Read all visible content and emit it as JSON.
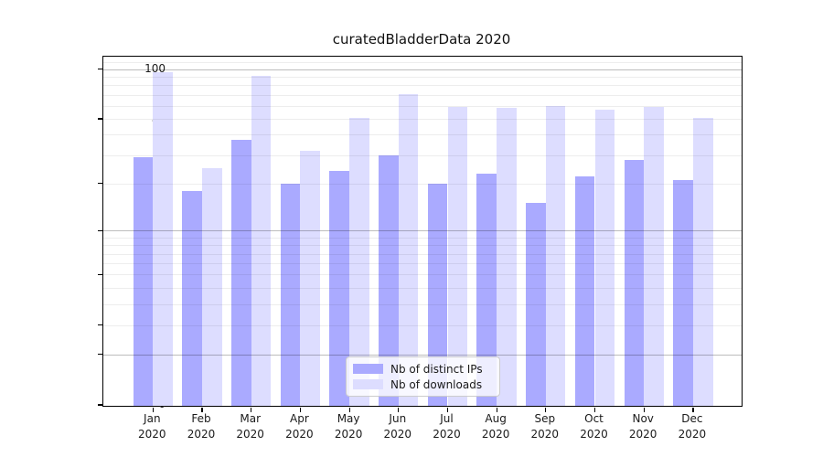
{
  "title": "curatedBladderData 2020",
  "year_label": "2020",
  "colors": {
    "distinct_ips": "#aaaaff",
    "downloads": "#ddddff",
    "axis": "#000000",
    "grid_major": "#bdbdbd",
    "grid_minor": "#ededed",
    "text": "#1a1a1a",
    "legend_border": "#cccccc"
  },
  "legend": {
    "items": [
      {
        "label": "Nb of distinct IPs",
        "color": "#aaaaff"
      },
      {
        "label": "Nb of downloads",
        "color": "#ddddff"
      }
    ]
  },
  "chart_data": {
    "type": "bar",
    "title": "curatedBladderData 2020",
    "categories": [
      "Jan 2020",
      "Feb 2020",
      "Mar 2020",
      "Apr 2020",
      "May 2020",
      "Jun 2020",
      "Jul 2020",
      "Aug 2020",
      "Sep 2020",
      "Oct 2020",
      "Nov 2020",
      "Dec 2020"
    ],
    "month_short": [
      "Jan",
      "Feb",
      "Mar",
      "Apr",
      "May",
      "Jun",
      "Jul",
      "Aug",
      "Sep",
      "Oct",
      "Nov",
      "Dec"
    ],
    "series": [
      {
        "name": "Nb of distinct IPs",
        "values": [
          29,
          18,
          37,
          20,
          24,
          30,
          20,
          23,
          15,
          22,
          28,
          21
        ]
      },
      {
        "name": "Nb of downloads",
        "values": [
          96,
          25,
          91,
          32,
          51,
          71,
          59,
          58,
          60,
          57,
          59,
          51
        ]
      }
    ],
    "xlabel": "",
    "ylabel": "",
    "yscale": "log1p",
    "ylim": [
      0,
      120
    ],
    "yticks_labeled": [
      0,
      1,
      2,
      5,
      10,
      20,
      50,
      100
    ],
    "grid_major_values": [
      1,
      10,
      100
    ],
    "grid_minor_values": [
      2,
      3,
      4,
      5,
      6,
      7,
      8,
      9,
      20,
      30,
      40,
      50,
      60,
      70,
      80,
      90,
      110
    ],
    "grid": true,
    "legend_position": "lower center"
  }
}
